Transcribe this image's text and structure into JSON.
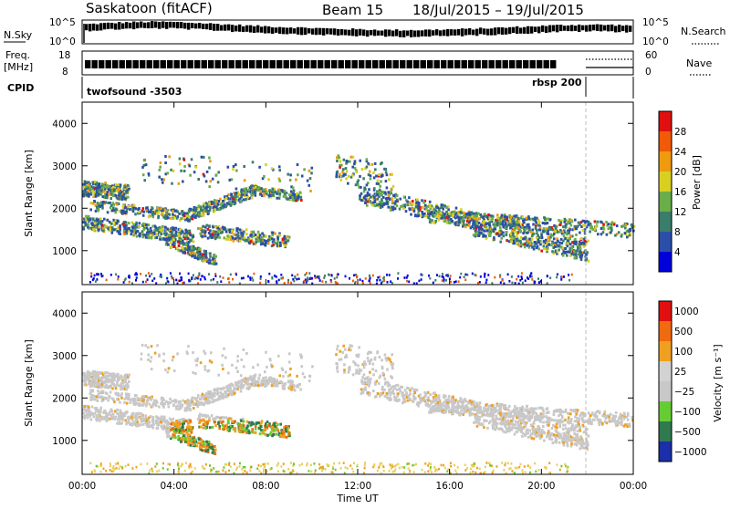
{
  "header": {
    "station": "Saskatoon (fitACF)",
    "beam": "Beam 15",
    "date_range": "18/Jul/2015 – 19/Jul/2015"
  },
  "noise_panel": {
    "left_label": "N.Sky",
    "left_ticks": [
      "10^5",
      "10^0"
    ],
    "right_ticks": [
      "10^5",
      "10^0"
    ],
    "right_label": "N.Search"
  },
  "freq_panel": {
    "left_label_top": "Freq.",
    "left_label_bottom": "[MHz]",
    "left_ticks": [
      "18",
      "8"
    ],
    "right_ticks": [
      "60",
      "0"
    ],
    "right_label": "Nave"
  },
  "cpid_panel": {
    "label": "CPID",
    "program_1": "twofsound -3503",
    "program_2": "rbsp 200"
  },
  "chart_data": [
    {
      "type": "heatmap",
      "parameter": "Power",
      "ylabel": "Slant Range [km]",
      "xlabel": "",
      "ylim": [
        200,
        4500
      ],
      "x_ticks": [
        "00:00",
        "04:00",
        "08:00",
        "12:00",
        "16:00",
        "20:00",
        "00:00"
      ],
      "y_ticks": [
        1000,
        2000,
        3000,
        4000
      ],
      "colorbar_label": "Power [dB]",
      "colorbar_ticks": [
        28,
        24,
        20,
        16,
        12,
        8,
        4
      ],
      "colors": [
        "#0000dd",
        "#2b4fa8",
        "#3a7d6a",
        "#6aae4c",
        "#d8d020",
        "#f09a10",
        "#f05a08",
        "#e01010"
      ]
    },
    {
      "type": "heatmap",
      "parameter": "Velocity",
      "ylabel": "Slant Range [km]",
      "xlabel": "Time UT",
      "ylim": [
        200,
        4500
      ],
      "x_ticks": [
        "00:00",
        "04:00",
        "08:00",
        "12:00",
        "16:00",
        "20:00",
        "00:00"
      ],
      "y_ticks": [
        1000,
        2000,
        3000,
        4000
      ],
      "colorbar_label": "Velocity [m s⁻¹]",
      "colorbar_ticks": [
        "1000",
        "500",
        "100",
        "25",
        "−25",
        "−100",
        "−500",
        "−1000"
      ],
      "colors": [
        "#1a2fa8",
        "#2f7a4f",
        "#66cc33",
        "#c8c8c8",
        "#d2d2d2",
        "#f0a020",
        "#f06a10",
        "#e01010"
      ]
    }
  ]
}
